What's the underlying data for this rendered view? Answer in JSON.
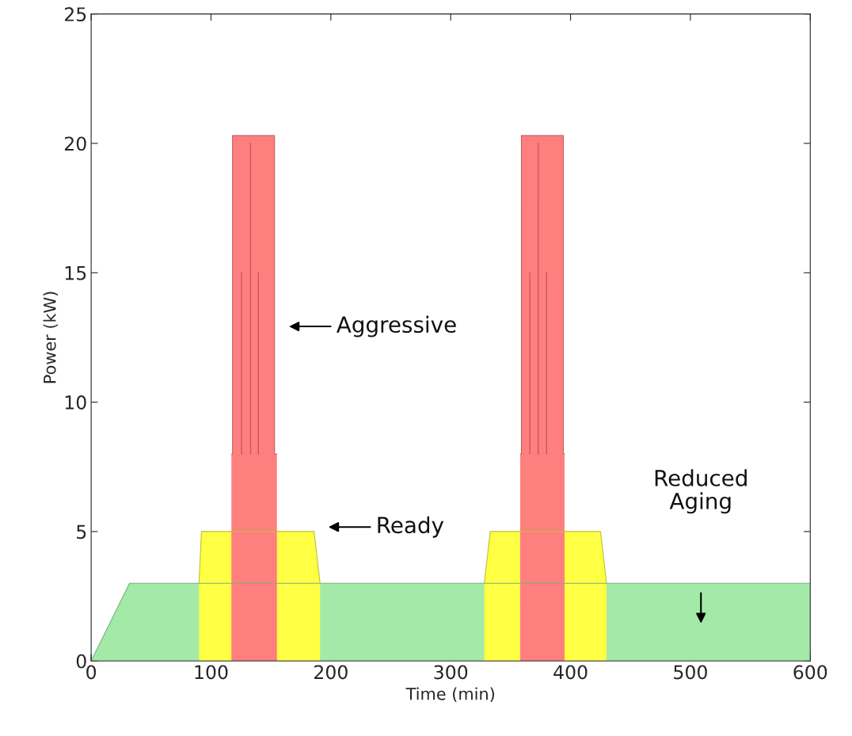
{
  "chart_data": {
    "type": "area",
    "xlabel": "Time (min)",
    "ylabel": "Power (kW)",
    "xlim": [
      0,
      600
    ],
    "ylim": [
      0,
      25
    ],
    "xticks": [
      0,
      100,
      200,
      300,
      400,
      500,
      600
    ],
    "yticks": [
      0,
      5,
      10,
      15,
      20,
      25
    ],
    "grid": false,
    "legend": false,
    "series": [
      {
        "color": "#a3eaa8",
        "x": [
          0,
          32,
          600
        ],
        "values": [
          0,
          3,
          3
        ]
      },
      {
        "type": "area",
        "color": "#ffff44",
        "x": [
          90,
          92,
          186,
          191
        ],
        "values": [
          3,
          5,
          5,
          3
        ]
      },
      {
        "type": "area",
        "color": "#ffff44",
        "x": [
          328,
          333,
          425,
          430
        ],
        "values": [
          3,
          5,
          5,
          3
        ]
      },
      {
        "type": "area",
        "color": "#ff7f7f",
        "x": [
          117,
          118,
          118,
          153,
          153,
          155
        ],
        "values": [
          8,
          8,
          20.3,
          20.3,
          8,
          8
        ]
      },
      {
        "type": "area",
        "color": "#ff7f7f",
        "x": [
          358,
          359,
          359,
          394,
          394,
          395
        ],
        "values": [
          8,
          8,
          20.3,
          20.3,
          8,
          8
        ]
      },
      {
        "type": "line",
        "color": "#c8585e",
        "x": [
          125.5,
          125.5,
          126,
          133,
          133,
          134,
          139.5,
          139.5,
          140,
          366,
          366,
          367,
          373,
          373,
          374,
          380,
          380
        ],
        "values": [
          8,
          15,
          null,
          8,
          20,
          null,
          8,
          15,
          null,
          8,
          15,
          null,
          8,
          20,
          null,
          8,
          15
        ]
      }
    ],
    "annotations": [
      "Aggressive",
      "Ready",
      "Reduced\nAging"
    ]
  }
}
